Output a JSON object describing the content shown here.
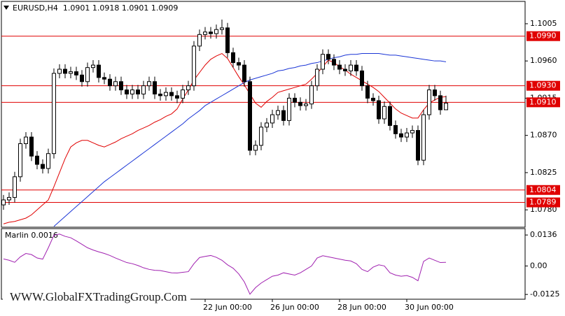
{
  "chart_data": [
    {
      "type": "candlestick",
      "title": "EURUSD,H4  1.0901 1.0918 1.0901 1.0909",
      "categories": [
        null,
        null,
        null,
        null,
        null,
        null,
        null,
        null,
        null,
        null,
        null,
        null,
        null,
        null,
        null,
        null,
        null,
        null,
        null,
        null,
        null,
        null,
        null,
        null,
        null,
        null,
        null,
        null,
        null,
        null,
        null,
        null,
        null,
        null,
        null,
        null,
        "22 Jun 00:00",
        null,
        null,
        null,
        null,
        null,
        null,
        null,
        null,
        null,
        null,
        null,
        "26 Jun 00:00",
        null,
        null,
        null,
        null,
        null,
        null,
        null,
        null,
        null,
        null,
        null,
        "28 Jun 00:00",
        null,
        null,
        null,
        null,
        null,
        null,
        null,
        null,
        null,
        null,
        null,
        "30 Jun 00:00",
        null,
        null,
        null,
        null,
        null,
        null,
        null
      ],
      "open": [
        1.0786,
        1.0792,
        1.0795,
        1.082,
        1.086,
        1.0868,
        1.0845,
        1.0835,
        1.083,
        1.0848,
        1.0945,
        1.095,
        1.0945,
        1.0947,
        1.0943,
        1.0935,
        1.0952,
        1.0955,
        1.094,
        1.0938,
        1.093,
        1.0935,
        1.0925,
        1.092,
        1.0925,
        1.092,
        1.093,
        1.0935,
        1.092,
        1.0918,
        1.0922,
        1.0918,
        1.0915,
        1.0925,
        1.093,
        1.0978,
        1.0992,
        1.0995,
        1.0993,
        1.0998,
        1.1,
        1.097,
        1.0958,
        1.0955,
        1.0935,
        1.0852,
        1.0858,
        1.088,
        1.0885,
        1.0895,
        1.09,
        1.0888,
        1.0915,
        1.091,
        1.0906,
        1.0908,
        1.093,
        1.095,
        1.0968,
        1.0962,
        1.0955,
        1.095,
        1.0948,
        1.0955,
        1.0948,
        1.093,
        1.0915,
        1.0912,
        1.089,
        1.0905,
        1.0882,
        1.0872,
        1.0868,
        1.0873,
        1.0876,
        1.084,
        1.0895,
        1.0925,
        1.0918,
        1.0901
      ],
      "high": [
        1.0798,
        1.0801,
        1.0826,
        1.0866,
        1.0874,
        1.0874,
        1.0851,
        1.0841,
        1.0854,
        1.0951,
        1.0956,
        1.0956,
        1.0953,
        1.0953,
        1.0949,
        1.0958,
        1.0961,
        1.0961,
        1.0946,
        1.0944,
        1.0941,
        1.0941,
        1.0931,
        1.0931,
        1.0931,
        1.0936,
        1.0941,
        1.0941,
        1.0926,
        1.0928,
        1.0928,
        1.0924,
        1.0931,
        1.0936,
        1.0984,
        1.0998,
        1.1001,
        1.1001,
        1.1004,
        1.101,
        1.1006,
        1.0976,
        1.0964,
        1.0961,
        1.0941,
        1.0864,
        1.0886,
        1.0891,
        1.0901,
        1.0906,
        1.0906,
        1.0921,
        1.0921,
        1.0916,
        1.0914,
        1.0936,
        1.0956,
        1.0974,
        1.0974,
        1.0968,
        1.0961,
        1.0956,
        1.0961,
        1.0961,
        1.0954,
        1.0936,
        1.0921,
        1.0918,
        1.0911,
        1.0911,
        1.0888,
        1.0878,
        1.0879,
        1.0882,
        1.0882,
        1.0901,
        1.0931,
        1.0931,
        1.0924,
        1.0918
      ],
      "low": [
        1.078,
        1.0786,
        1.0789,
        1.0814,
        1.0854,
        1.0839,
        1.0829,
        1.0824,
        1.0824,
        1.0842,
        1.0939,
        1.0939,
        1.0939,
        1.0937,
        1.0929,
        1.0929,
        1.0946,
        1.0934,
        1.0932,
        1.0924,
        1.0924,
        1.0919,
        1.0914,
        1.0914,
        1.0914,
        1.0914,
        1.0924,
        1.0914,
        1.0912,
        1.0912,
        1.0912,
        1.0909,
        1.0909,
        1.0919,
        1.0924,
        1.0972,
        1.0986,
        1.0987,
        1.0987,
        1.0992,
        1.0964,
        1.0952,
        1.0949,
        1.0929,
        1.0846,
        1.0846,
        1.0852,
        1.0874,
        1.0879,
        1.0889,
        1.0882,
        1.0882,
        1.0904,
        1.09,
        1.09,
        1.0902,
        1.0924,
        1.0944,
        1.0956,
        1.0949,
        1.0944,
        1.0942,
        1.0942,
        1.0942,
        1.0924,
        1.0909,
        1.0906,
        1.0884,
        1.0884,
        1.0876,
        1.0866,
        1.0862,
        1.0862,
        1.0867,
        1.0834,
        1.0834,
        1.0889,
        1.0912,
        1.0895,
        1.0901
      ],
      "close": [
        1.0792,
        1.0795,
        1.082,
        1.086,
        1.0868,
        1.0845,
        1.0835,
        1.083,
        1.0848,
        1.0945,
        1.095,
        1.0945,
        1.0947,
        1.0943,
        1.0935,
        1.0952,
        1.0955,
        1.094,
        1.0938,
        1.093,
        1.0935,
        1.0925,
        1.092,
        1.0925,
        1.092,
        1.093,
        1.0935,
        1.092,
        1.0918,
        1.0922,
        1.0918,
        1.0915,
        1.0925,
        1.093,
        1.0978,
        1.0992,
        1.0995,
        1.0993,
        1.0998,
        1.1,
        1.097,
        1.0958,
        1.0955,
        1.0935,
        1.0852,
        1.0858,
        1.088,
        1.0885,
        1.0895,
        1.09,
        1.0888,
        1.0915,
        1.091,
        1.0906,
        1.0908,
        1.093,
        1.095,
        1.0968,
        1.0962,
        1.0955,
        1.095,
        1.0948,
        1.0955,
        1.0948,
        1.093,
        1.0915,
        1.0912,
        1.089,
        1.0905,
        1.0882,
        1.0872,
        1.0868,
        1.0873,
        1.0876,
        1.084,
        1.0895,
        1.0925,
        1.0918,
        1.0901,
        1.0909
      ],
      "series": [
        {
          "color": "#e00000",
          "values": [
            1.0763,
            1.0765,
            1.0766,
            1.0768,
            1.077,
            1.0774,
            1.078,
            1.0786,
            1.0792,
            1.0808,
            1.0825,
            1.0842,
            1.0856,
            1.0861,
            1.0864,
            1.0864,
            1.0861,
            1.0858,
            1.0856,
            1.0859,
            1.0862,
            1.0866,
            1.0869,
            1.0872,
            1.0876,
            1.0879,
            1.0882,
            1.0886,
            1.0889,
            1.0893,
            1.0896,
            1.0902,
            1.0914,
            1.0925,
            1.0937,
            1.0946,
            1.0955,
            1.0962,
            1.0966,
            1.0969,
            1.0963,
            1.0952,
            1.0941,
            1.0931,
            1.092,
            1.0909,
            1.0904,
            1.0911,
            1.0916,
            1.0922,
            1.0924,
            1.0926,
            1.0928,
            1.093,
            1.0932,
            1.0938,
            1.0945,
            1.0953,
            1.0961,
            1.0958,
            1.0953,
            1.0949,
            1.0944,
            1.094,
            1.0936,
            1.0932,
            1.0928,
            1.0923,
            1.0916,
            1.0909,
            1.0902,
            1.0897,
            1.0894,
            1.0891,
            1.0891,
            1.0901,
            1.0909,
            1.0913,
            1.0916,
            1.0917
          ]
        },
        {
          "color": "#1a35d6",
          "values": [
            null,
            null,
            null,
            null,
            null,
            null,
            null,
            null,
            null,
            1.076,
            1.0766,
            1.0772,
            1.0778,
            1.0784,
            1.079,
            1.0796,
            1.0802,
            1.0808,
            1.0814,
            1.0819,
            1.0824,
            1.0829,
            1.0834,
            1.0839,
            1.0844,
            1.0849,
            1.0854,
            1.0859,
            1.0864,
            1.0869,
            1.0874,
            1.0879,
            1.0884,
            1.089,
            1.0895,
            1.09,
            1.0906,
            1.091,
            1.0914,
            1.0918,
            1.0922,
            1.0926,
            1.093,
            1.0934,
            1.0937,
            1.0939,
            1.0941,
            1.0943,
            1.0945,
            1.0948,
            1.0949,
            1.0951,
            1.0952,
            1.0954,
            1.0955,
            1.0957,
            1.0958,
            1.096,
            1.0962,
            1.0964,
            1.0965,
            1.0967,
            1.0968,
            1.0968,
            1.0969,
            1.0969,
            1.0969,
            1.0969,
            1.0968,
            1.0967,
            1.0967,
            1.0966,
            1.0965,
            1.0964,
            1.0963,
            1.0962,
            1.0961,
            1.096,
            1.096,
            1.0959
          ]
        }
      ],
      "levels": [
        {
          "value": 1.099,
          "label": "1.0990"
        },
        {
          "value": 1.093,
          "label": "1.0930"
        },
        {
          "value": 1.091,
          "label": "1.0910"
        },
        1.0804,
        1.0789
      ],
      "level_color": "#e00000",
      "ylim": [
        1.0759,
        1.1032
      ],
      "yticks": [
        1.1005,
        {
          "value": 1.096,
          "label": "1.0960"
        },
        1.0915,
        {
          "value": 1.087,
          "label": "1.0870"
        },
        1.0825,
        {
          "value": 1.078,
          "label": "1.0780"
        }
      ],
      "watermark": "WWW.GlobalFXTradingGroup.Com"
    },
    {
      "type": "line",
      "title": "Marlin 0.0016",
      "color": "#a020b0",
      "values": [
        0.0031,
        0.0025,
        0.0016,
        0.004,
        0.0055,
        0.005,
        0.0035,
        0.003,
        0.008,
        0.0135,
        0.014,
        0.013,
        0.0124,
        0.011,
        0.0095,
        0.008,
        0.007,
        0.0062,
        0.0055,
        0.0046,
        0.0035,
        0.0025,
        0.0015,
        0.001,
        0.0002,
        -0.0008,
        -0.0015,
        -0.0019,
        -0.002,
        -0.0025,
        -0.003,
        -0.0031,
        -0.0028,
        -0.0025,
        0.001,
        0.0037,
        0.0042,
        0.0046,
        0.0038,
        0.0025,
        0.0005,
        -0.001,
        -0.0035,
        -0.007,
        -0.0124,
        -0.0095,
        -0.0075,
        -0.006,
        -0.0045,
        -0.004,
        -0.003,
        -0.0035,
        -0.004,
        -0.003,
        -0.0015,
        0.0,
        0.0035,
        0.0045,
        0.004,
        0.0035,
        0.003,
        0.0025,
        0.0022,
        0.001,
        -0.0015,
        -0.0025,
        -0.0005,
        0.0005,
        0.0,
        -0.003,
        -0.004,
        -0.0045,
        -0.0042,
        -0.005,
        -0.0065,
        0.002,
        0.0035,
        0.0025,
        0.0015,
        0.0016
      ],
      "ylim": [
        -0.0146,
        0.0164
      ],
      "yticks": [
        0.0136,
        {
          "value": 0,
          "label": "0.00"
        },
        -0.0125
      ]
    }
  ]
}
